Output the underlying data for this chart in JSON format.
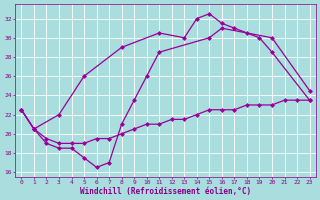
{
  "line1_x": [
    0,
    1,
    3,
    5,
    8,
    11,
    13,
    14,
    15,
    16,
    17,
    18,
    19,
    20,
    23
  ],
  "line1_y": [
    22.5,
    20.5,
    22.0,
    26.0,
    29.0,
    30.5,
    30.0,
    32.0,
    32.5,
    31.5,
    31.0,
    30.5,
    30.0,
    28.5,
    23.5
  ],
  "line2_x": [
    0,
    1,
    2,
    3,
    4,
    5,
    6,
    7,
    8,
    9,
    10,
    11,
    15,
    16,
    20,
    23
  ],
  "line2_y": [
    22.5,
    20.5,
    19.0,
    18.5,
    18.5,
    17.5,
    16.5,
    17.0,
    21.0,
    23.5,
    26.0,
    28.5,
    30.0,
    31.0,
    30.0,
    24.5
  ],
  "line3_x": [
    0,
    1,
    2,
    3,
    4,
    5,
    6,
    7,
    8,
    9,
    10,
    11,
    12,
    13,
    14,
    15,
    16,
    17,
    18,
    19,
    20,
    21,
    22,
    23
  ],
  "line3_y": [
    22.5,
    20.5,
    19.5,
    19.0,
    19.0,
    19.0,
    19.5,
    19.5,
    20.0,
    20.5,
    21.0,
    21.0,
    21.5,
    21.5,
    22.0,
    22.5,
    22.5,
    22.5,
    23.0,
    23.0,
    23.0,
    23.5,
    23.5,
    23.5
  ],
  "xlim": [
    -0.5,
    23.5
  ],
  "ylim": [
    15.5,
    33.5
  ],
  "yticks": [
    16,
    18,
    20,
    22,
    24,
    26,
    28,
    30,
    32
  ],
  "xticks": [
    0,
    1,
    2,
    3,
    4,
    5,
    6,
    7,
    8,
    9,
    10,
    11,
    12,
    13,
    14,
    15,
    16,
    17,
    18,
    19,
    20,
    21,
    22,
    23
  ],
  "xlabel": "Windchill (Refroidissement éolien,°C)",
  "line_color": "#990099",
  "bg_color": "#aadddd",
  "grid_color": "#ffffff",
  "marker": "D",
  "marker_size": 2.0,
  "line_width": 0.9,
  "font_color": "#880088",
  "tick_fontsize": 4.5,
  "xlabel_fontsize": 5.5
}
